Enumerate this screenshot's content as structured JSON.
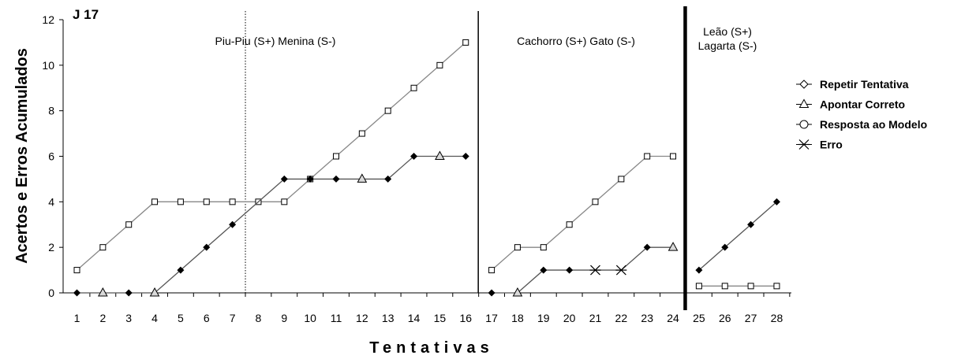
{
  "chart_data": {
    "type": "line",
    "panel_label": "J 17",
    "ylabel": "Acertos e Erros Acumulados",
    "xlabel": "Tentativas",
    "xlim": [
      1,
      28
    ],
    "ylim": [
      0,
      12
    ],
    "yticks": [
      0,
      2,
      4,
      6,
      8,
      10,
      12
    ],
    "xticks": [
      1,
      2,
      3,
      4,
      5,
      6,
      7,
      8,
      9,
      10,
      11,
      12,
      13,
      14,
      15,
      16,
      17,
      18,
      19,
      20,
      21,
      22,
      23,
      24,
      25,
      26,
      27,
      28
    ],
    "grid": false,
    "legend_position": "right",
    "phase_labels": [
      {
        "lines": [
          "Piu-Piu (S+) Menina (S-)"
        ]
      },
      {
        "lines": [
          "Cachorro (S+) Gato (S-)"
        ]
      },
      {
        "lines": [
          "Leão (S+)",
          "Lagarta (S-)"
        ]
      }
    ],
    "legend": [
      {
        "label": "Repetir Tentativa",
        "marker": "diamond"
      },
      {
        "label": "Apontar Correto",
        "marker": "triangle"
      },
      {
        "label": "Resposta ao Modelo",
        "marker": "circle"
      },
      {
        "label": "Erro",
        "marker": "star"
      }
    ],
    "dividers": [
      {
        "after_x": 7.5,
        "style": "dotted"
      },
      {
        "after_x": 16.5,
        "style": "solid"
      },
      {
        "after_x": 24.5,
        "style": "thick"
      }
    ],
    "series": [
      {
        "marker_style": "open-square",
        "segments": [
          {
            "x": [
              1,
              2,
              3,
              4,
              5,
              6,
              7,
              8,
              9,
              10,
              11,
              12,
              13,
              14,
              15,
              16
            ],
            "y": [
              1,
              2,
              3,
              4,
              4,
              4,
              4,
              4,
              4,
              5,
              6,
              7,
              8,
              9,
              10,
              11
            ]
          },
          {
            "x": [
              17,
              18,
              19,
              20,
              21,
              22,
              23,
              24
            ],
            "y": [
              1,
              2,
              2,
              3,
              4,
              5,
              6,
              6
            ]
          },
          {
            "x": [
              25,
              26,
              27,
              28
            ],
            "y": [
              0.3,
              0.3,
              0.3,
              0.3
            ]
          }
        ]
      },
      {
        "marker_style": "mixed",
        "segments": [
          {
            "x": [
              1,
              2,
              3,
              4,
              5,
              6,
              7,
              8,
              9,
              10,
              11,
              12,
              13,
              14,
              15,
              16
            ],
            "y": [
              0,
              0,
              0,
              0,
              1,
              2,
              3,
              4,
              5,
              5,
              5,
              5,
              5,
              6,
              6,
              6
            ],
            "markers": [
              "diamond",
              "triangle",
              "diamond",
              "triangle",
              "diamond",
              "diamond",
              "diamond",
              "none",
              "diamond",
              "diamond",
              "diamond",
              "triangle",
              "diamond",
              "diamond",
              "triangle",
              "diamond"
            ]
          },
          {
            "x": [
              17,
              18,
              19,
              20,
              21,
              22,
              23,
              24
            ],
            "y": [
              0,
              0,
              1,
              1,
              1,
              1,
              2,
              2
            ],
            "markers": [
              "diamond",
              "triangle",
              "diamond",
              "diamond",
              "star",
              "star",
              "diamond",
              "triangle"
            ]
          },
          {
            "x": [
              25,
              26,
              27,
              28
            ],
            "y": [
              1,
              2,
              3,
              4
            ],
            "markers": [
              "diamond",
              "diamond",
              "diamond",
              "diamond"
            ]
          }
        ]
      }
    ]
  }
}
